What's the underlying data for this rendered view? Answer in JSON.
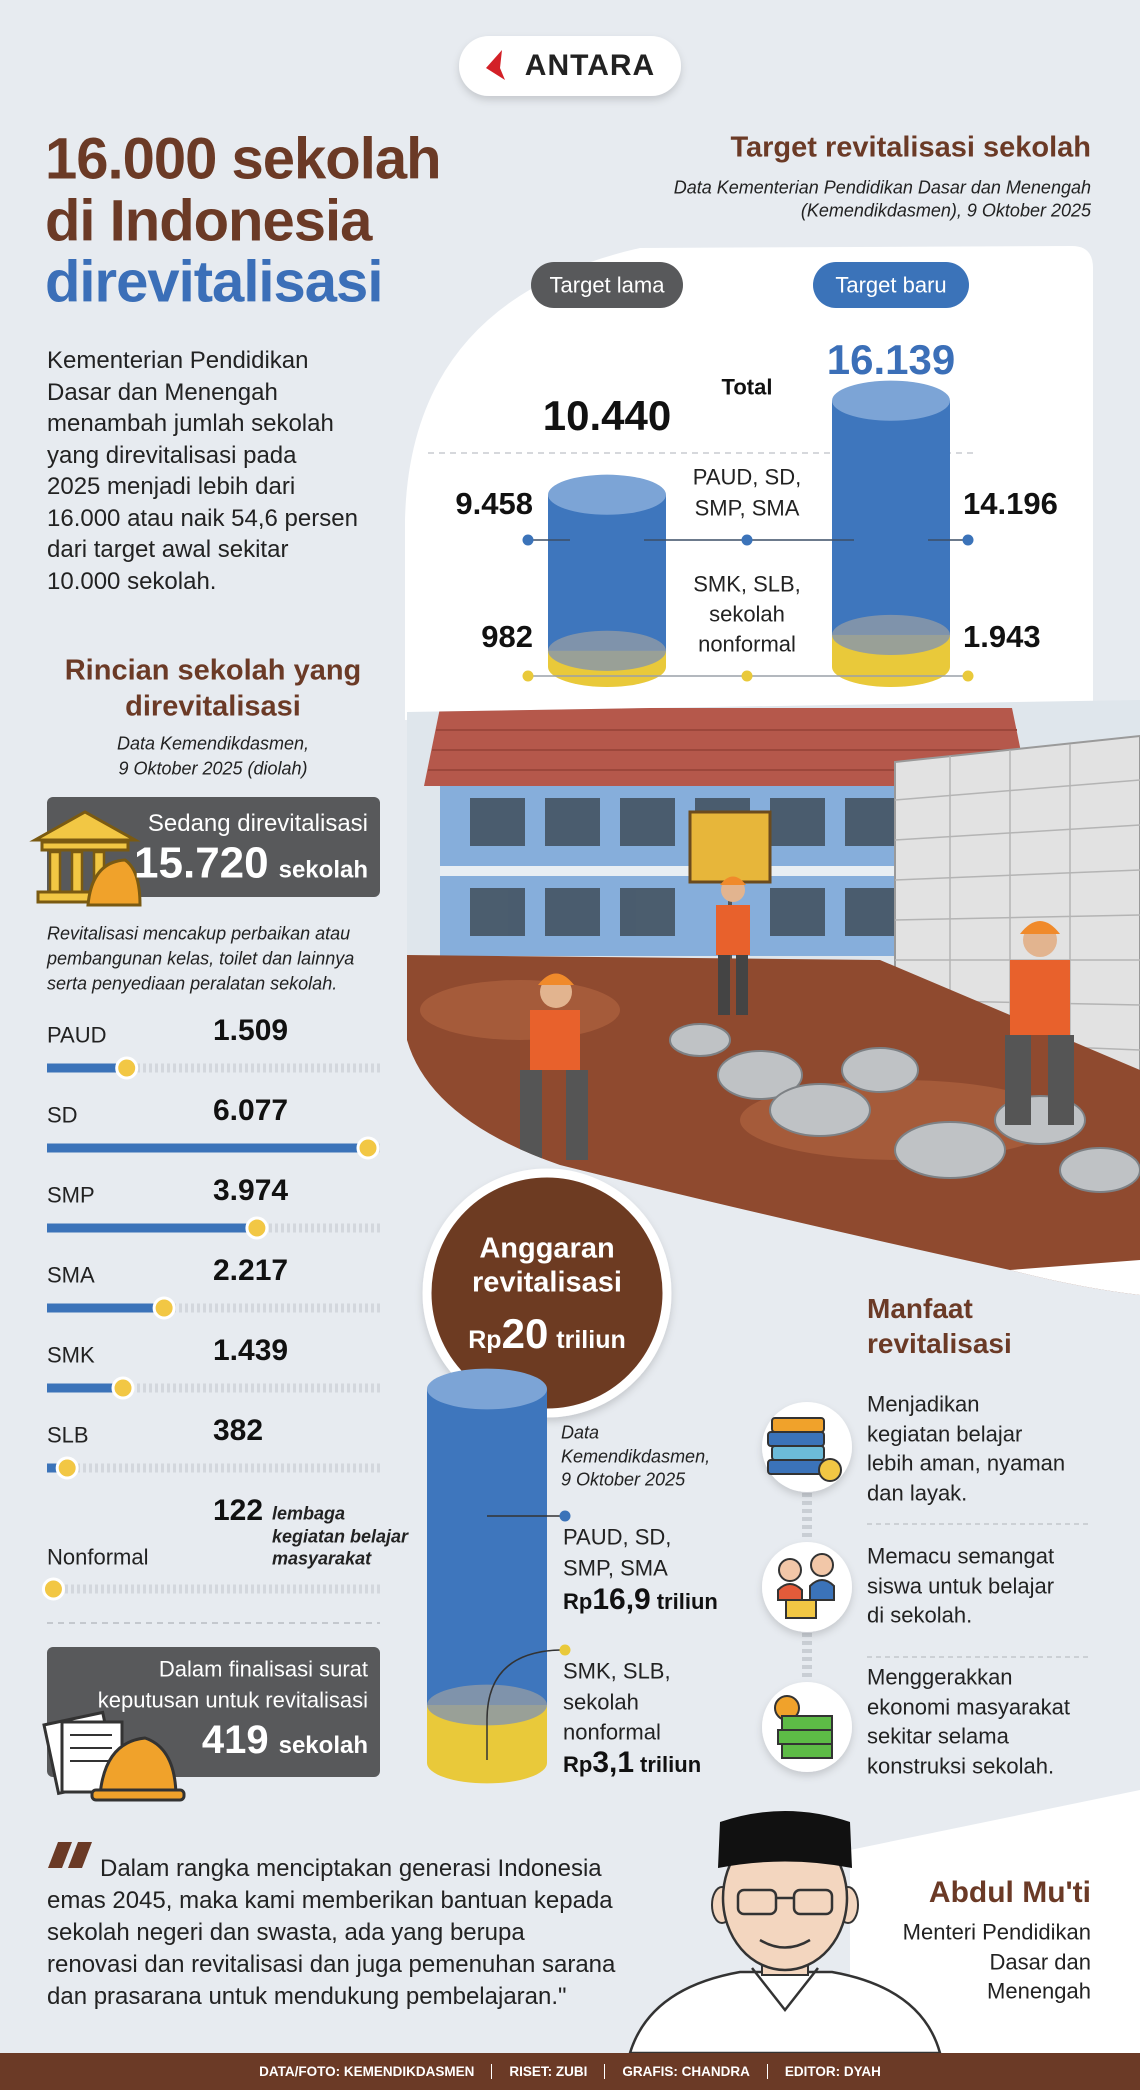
{
  "logo": "ANTARA",
  "title": [
    "16.000 sekolah",
    "di Indonesia",
    "direvitalisasi"
  ],
  "intro": [
    "Kementerian Pendidikan",
    "Dasar dan Menengah",
    "menambah jumlah sekolah",
    "yang direvitalisasi pada",
    "2025 menjadi lebih dari",
    "16.000 atau naik 54,6 persen",
    "dari target awal sekitar",
    "10.000 sekolah."
  ],
  "breakdown": {
    "title": [
      "Rincian sekolah yang",
      "direvitalisasi"
    ],
    "source": [
      "Data Kemendikdasmen,",
      "9 Oktober 2025 (diolah)"
    ],
    "in_progress": {
      "label": "Sedang direvitalisasi",
      "count": {
        "value": 15720,
        "label": "15.720"
      },
      "unit": "sekolah"
    },
    "note": [
      "Revitalisasi mencakup perbaikan atau",
      "pembangunan kelas, toilet dan lainnya",
      "serta penyediaan peralatan sekolah."
    ],
    "items": [
      {
        "name": "PAUD",
        "count": {
          "value": 1509,
          "label": "1.509"
        }
      },
      {
        "name": "SD",
        "count": {
          "value": 6077,
          "label": "6.077"
        }
      },
      {
        "name": "SMP",
        "count": {
          "value": 3974,
          "label": "3.974"
        }
      },
      {
        "name": "SMA",
        "count": {
          "value": 2217,
          "label": "2.217"
        }
      },
      {
        "name": "SMK",
        "count": {
          "value": 1439,
          "label": "1.439"
        }
      },
      {
        "name": "SLB",
        "count": 382
      },
      {
        "name": "Nonformal",
        "count": 122,
        "unit": [
          "lembaga",
          "kegiatan belajar",
          "masyarakat"
        ]
      }
    ],
    "finalizing": {
      "label": [
        "Dalam finalisasi surat",
        "keputusan untuk revitalisasi"
      ],
      "count": 419,
      "unit": "sekolah"
    }
  },
  "target": {
    "title": "Target revitalisasi sekolah",
    "source": [
      "Data Kementerian Pendidikan Dasar dan Menengah",
      "(Kemendikdasmen), 9 Oktober 2025"
    ],
    "total_label": "Total",
    "groups": [
      [
        "PAUD, SD,",
        "SMP, SMA"
      ],
      [
        "SMK, SLB,",
        "sekolah",
        "nonformal"
      ]
    ],
    "old": {
      "name": "Target lama",
      "total": {
        "value": 10440,
        "label": "10.440"
      },
      "values": [
        {
          "value": 9458,
          "label": "9.458"
        },
        982
      ]
    },
    "new": {
      "name": "Target baru",
      "total": {
        "value": 16139,
        "label": "16.139"
      },
      "values": [
        {
          "value": 14196,
          "label": "14.196"
        },
        {
          "value": 1943,
          "label": "1.943"
        }
      ]
    }
  },
  "budget": {
    "title": [
      "Anggaran",
      "revitalisasi"
    ],
    "currency": "Rp",
    "total": 20,
    "unit": "triliun",
    "source": [
      "Data",
      "Kemendikdasmen,",
      "9 Oktober 2025"
    ],
    "items": [
      {
        "label": [
          "PAUD, SD,",
          "SMP, SMA"
        ],
        "value": {
          "value": 16.9,
          "label": "16,9"
        }
      },
      {
        "label": [
          "SMK, SLB,",
          "sekolah",
          "nonformal"
        ],
        "value": {
          "value": 3.1,
          "label": "3,1"
        }
      }
    ]
  },
  "benefits": {
    "title": [
      "Manfaat",
      "revitalisasi"
    ],
    "items": [
      [
        "Menjadikan",
        "kegiatan belajar",
        "lebih aman, nyaman",
        "dan layak."
      ],
      [
        "Memacu semangat",
        "siswa untuk belajar",
        "di sekolah."
      ],
      [
        "Menggerakkan",
        "ekonomi masyarakat",
        "sekitar selama",
        "konstruksi sekolah."
      ]
    ]
  },
  "quote": {
    "text": [
      "Dalam rangka menciptakan generasi Indonesia",
      "emas 2045, maka kami memberikan bantuan kepada",
      "sekolah negeri dan swasta, ada yang berupa",
      "renovasi dan revitalisasi dan juga pemenuhan sarana",
      "dan prasarana untuk mendukung pembelajaran.\""
    ],
    "name": "Abdul Mu'ti",
    "role": [
      "Menteri Pendidikan",
      "Dasar dan",
      "Menengah"
    ]
  },
  "credits": [
    "DATA/FOTO: KEMENDIKDASMEN",
    "RISET: ZUBI",
    "GRAFIS: CHANDRA",
    "EDITOR: DYAH"
  ]
}
